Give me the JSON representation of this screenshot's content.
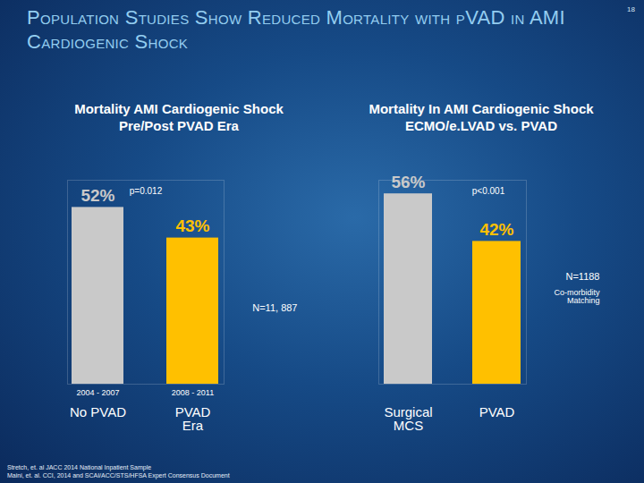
{
  "title": "Population Studies Show Reduced Mortality with pVAD in AMI Cardiogenic Shock",
  "page_number": "18",
  "footnotes": [
    "Stretch, et. al JACC 2014 National Inpatient Sample",
    "Maini, et. al. CCI, 2014 and SCAI/ACC/STS/HFSA Expert Consensus Document"
  ],
  "chart_data": [
    {
      "type": "bar",
      "title": "Mortality AMI Cardiogenic Shock\nPre/Post PVAD Era",
      "categories": [
        "No PVAD",
        "PVAD\nEra"
      ],
      "bar_sublabels": [
        "2004 - 2007",
        "2008 - 2011"
      ],
      "values": [
        52,
        43
      ],
      "value_labels": [
        "52%",
        "43%"
      ],
      "colors": [
        "#c9c9c9",
        "#ffc000"
      ],
      "ylim": [
        0,
        60
      ],
      "grid": false,
      "tick_labels": false,
      "data_labels": true,
      "annotations": [
        "p=0.012",
        "N=11, 887"
      ]
    },
    {
      "type": "bar",
      "title": "Mortality In AMI Cardiogenic Shock\nECMO/e.LVAD vs. PVAD",
      "categories": [
        "Surgical\nMCS",
        "PVAD"
      ],
      "values": [
        56,
        42
      ],
      "value_labels": [
        "56%",
        "42%"
      ],
      "colors": [
        "#c9c9c9",
        "#ffc000"
      ],
      "ylim": [
        0,
        60
      ],
      "grid": false,
      "tick_labels": false,
      "data_labels": true,
      "annotations": [
        "p<0.001",
        "N=1188",
        "Co-morbidity\nMatching"
      ]
    }
  ]
}
